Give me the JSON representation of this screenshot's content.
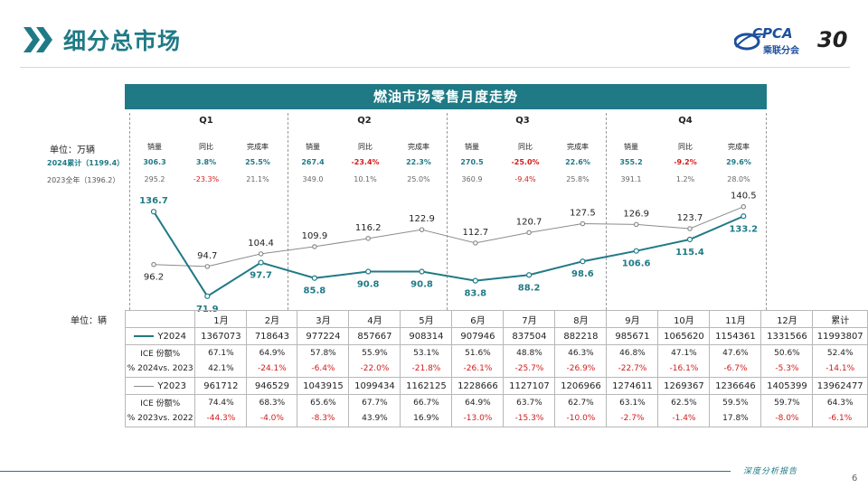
{
  "header": {
    "title": "细分总市场",
    "logo_text": "CPCA",
    "logo_sub": "乘联分会",
    "logo_anniv": "30"
  },
  "banner_title": "燃油市场零售月度走势",
  "quarters": [
    "Q1",
    "Q2",
    "Q3",
    "Q4"
  ],
  "summary": {
    "unit_label": "单位：万辆",
    "headers": [
      "销量",
      "同比",
      "完成率",
      "销量",
      "同比",
      "完成率",
      "销量",
      "同比",
      "完成率",
      "销量",
      "同比",
      "完成率"
    ],
    "row2024_label": "2024累计（1199.4）",
    "row2024": [
      "306.3",
      "3.8%",
      "25.5%",
      "267.4",
      "-23.4%",
      "22.3%",
      "270.5",
      "-25.0%",
      "22.6%",
      "355.2",
      "-9.2%",
      "29.6%"
    ],
    "row2023_label": "2023全年（1396.2）",
    "row2023": [
      "295.2",
      "-23.3%",
      "21.1%",
      "349.0",
      "10.1%",
      "25.0%",
      "360.9",
      "-9.4%",
      "25.8%",
      "391.1",
      "1.2%",
      "28.0%"
    ]
  },
  "colors": {
    "teal": "#1f7a86",
    "gray": "#8c8c8c",
    "red": "#d21b1b"
  },
  "chart_data": {
    "type": "line",
    "categories": [
      "1月",
      "2月",
      "3月",
      "4月",
      "5月",
      "6月",
      "7月",
      "8月",
      "9月",
      "10月",
      "11月",
      "12月"
    ],
    "series": [
      {
        "name": "Y2024",
        "values": [
          136.7,
          71.9,
          97.7,
          85.8,
          90.8,
          90.8,
          83.8,
          88.2,
          98.6,
          106.6,
          115.4,
          133.2
        ]
      },
      {
        "name": "Y2023",
        "values": [
          96.2,
          94.7,
          104.4,
          109.9,
          116.2,
          122.9,
          112.7,
          120.7,
          127.5,
          126.9,
          123.7,
          140.5
        ]
      }
    ],
    "ylim": [
      60,
      150
    ]
  },
  "table": {
    "unit_label": "单位：辆",
    "header": [
      "1月",
      "2月",
      "3月",
      "4月",
      "5月",
      "6月",
      "7月",
      "8月",
      "9月",
      "10月",
      "11月",
      "12月",
      "累计"
    ],
    "blocks": [
      {
        "series_label": "Y2024",
        "values": [
          "1367073",
          "718643",
          "977224",
          "857667",
          "908314",
          "907946",
          "837504",
          "882218",
          "985671",
          "1065620",
          "1154361",
          "1331566",
          "11993807"
        ],
        "share_label": "ICE 份额%",
        "share": [
          "67.1%",
          "64.9%",
          "57.8%",
          "55.9%",
          "53.1%",
          "51.6%",
          "48.8%",
          "46.3%",
          "46.8%",
          "47.1%",
          "47.6%",
          "50.6%",
          "52.4%"
        ],
        "yoy_label": "% 2024vs. 2023",
        "yoy": [
          "42.1%",
          "-24.1%",
          "-6.4%",
          "-22.0%",
          "-21.8%",
          "-26.1%",
          "-25.7%",
          "-26.9%",
          "-22.7%",
          "-16.1%",
          "-6.7%",
          "-5.3%",
          "-14.1%"
        ]
      },
      {
        "series_label": "Y2023",
        "values": [
          "961712",
          "946529",
          "1043915",
          "1099434",
          "1162125",
          "1228666",
          "1127107",
          "1206966",
          "1274611",
          "1269367",
          "1236646",
          "1405399",
          "13962477"
        ],
        "share_label": "ICE 份额%",
        "share": [
          "74.4%",
          "68.3%",
          "65.6%",
          "67.7%",
          "66.7%",
          "64.9%",
          "63.7%",
          "62.7%",
          "63.1%",
          "62.5%",
          "59.5%",
          "59.7%",
          "64.3%"
        ],
        "yoy_label": "% 2023vs. 2022",
        "yoy": [
          "-44.3%",
          "-4.0%",
          "-8.3%",
          "43.9%",
          "16.9%",
          "-13.0%",
          "-15.3%",
          "-10.0%",
          "-2.7%",
          "-1.4%",
          "17.8%",
          "-8.0%",
          "-6.1%"
        ]
      }
    ]
  },
  "footer": {
    "text": "深度分析报告",
    "page": "6"
  }
}
